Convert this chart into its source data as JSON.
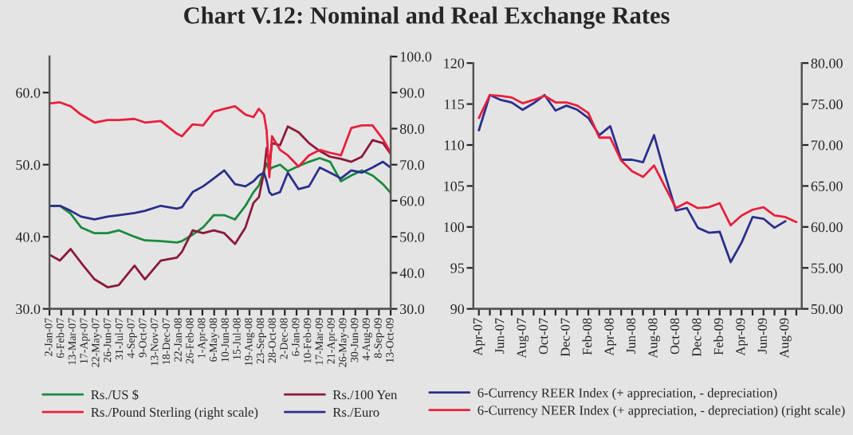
{
  "chart_data": [
    {
      "type": "line",
      "title": "Chart V.12: Nominal and Real Exchange Rates",
      "x": [
        "2007-01-02",
        "2007-02-02",
        "2007-03-06",
        "2007-04-06",
        "2007-05-16",
        "2007-06-24",
        "2007-07-27",
        "2007-09-12",
        "2007-10-13",
        "2007-11-29",
        "2008-01-16",
        "2008-01-31",
        "2008-03-03",
        "2008-04-03",
        "2008-05-05",
        "2008-06-05",
        "2008-07-07",
        "2008-08-07",
        "2008-08-31",
        "2008-09-16",
        "2008-10-01",
        "2008-10-09",
        "2008-10-17",
        "2008-10-25",
        "2008-11-18",
        "2008-12-11",
        "2009-01-12",
        "2009-02-12",
        "2009-03-16",
        "2009-04-16",
        "2009-05-18",
        "2009-06-18",
        "2009-07-19",
        "2009-08-20",
        "2009-09-20",
        "2009-10-13"
      ],
      "series": [
        {
          "name": "Rs./US $",
          "color": "#1a8a3c",
          "values": [
            44.3,
            44.3,
            43.2,
            41.3,
            40.5,
            40.5,
            40.9,
            40.0,
            39.5,
            39.4,
            39.2,
            39.4,
            40.3,
            41.3,
            43.0,
            43.0,
            42.4,
            44.3,
            46.2,
            47.1,
            49.2,
            50.2,
            49.2,
            49.6,
            50.0,
            49.1,
            49.8,
            50.4,
            50.9,
            50.4,
            47.7,
            48.5,
            49.2,
            48.5,
            47.3,
            46.1
          ]
        },
        {
          "name": "Rs./100 Yen",
          "color": "#8b1a3a",
          "values": [
            37.5,
            36.7,
            38.3,
            36.4,
            34.1,
            33.0,
            33.3,
            36.0,
            34.1,
            36.7,
            37.1,
            37.9,
            40.9,
            40.5,
            40.9,
            40.5,
            39.0,
            41.3,
            44.7,
            45.5,
            48.9,
            52.3,
            50.0,
            53.0,
            52.7,
            55.3,
            54.5,
            53.0,
            51.9,
            51.1,
            50.8,
            50.4,
            51.1,
            53.4,
            53.0,
            51.5
          ]
        },
        {
          "name": "Rs./Pound Sterling (right scale)",
          "color": "#e8203c",
          "axis": "y2",
          "values": [
            87.0,
            87.3,
            86.2,
            83.9,
            81.7,
            82.4,
            82.4,
            82.7,
            81.7,
            82.1,
            78.6,
            77.9,
            81.2,
            80.9,
            84.7,
            85.5,
            86.2,
            83.9,
            83.2,
            85.5,
            83.9,
            79.4,
            66.5,
            77.9,
            74.1,
            72.6,
            69.5,
            72.6,
            74.1,
            73.3,
            72.6,
            80.2,
            80.9,
            80.9,
            77.1,
            73.3
          ]
        },
        {
          "name": "Rs./Euro",
          "color": "#2b2f8c",
          "values": [
            44.3,
            44.3,
            43.6,
            42.8,
            42.4,
            42.8,
            43.0,
            43.3,
            43.6,
            44.3,
            43.9,
            44.1,
            46.2,
            47.0,
            48.1,
            49.2,
            47.3,
            47.0,
            47.7,
            48.5,
            48.9,
            47.7,
            46.2,
            45.8,
            46.2,
            48.9,
            46.6,
            47.0,
            49.6,
            48.9,
            48.1,
            49.2,
            48.9,
            49.6,
            50.4,
            49.6
          ]
        }
      ],
      "xlim": [
        "2007-01-02",
        "2009-10-13"
      ],
      "xticks": [
        {
          "value": "2007-01-02",
          "label": "2-Jan-07"
        },
        {
          "value": "2007-02-06",
          "label": "6-Feb-07"
        },
        {
          "value": "2007-03-13",
          "label": "13-Mar-07"
        },
        {
          "value": "2007-04-17",
          "label": "17-Apr-07"
        },
        {
          "value": "2007-05-22",
          "label": "22-May-07"
        },
        {
          "value": "2007-06-26",
          "label": "26-Jun-07"
        },
        {
          "value": "2007-07-31",
          "label": "31-Jul-07"
        },
        {
          "value": "2007-09-04",
          "label": "4-Sep-07"
        },
        {
          "value": "2007-10-09",
          "label": "9-Oct-07"
        },
        {
          "value": "2007-11-13",
          "label": "13-Nov-07"
        },
        {
          "value": "2007-12-18",
          "label": "18-Dec-07"
        },
        {
          "value": "2008-01-22",
          "label": "22-Jan-08"
        },
        {
          "value": "2008-02-26",
          "label": "26-Feb-08"
        },
        {
          "value": "2008-04-01",
          "label": "1-Apr-08"
        },
        {
          "value": "2008-05-06",
          "label": "6-May-08"
        },
        {
          "value": "2008-06-10",
          "label": "10-Jun-08"
        },
        {
          "value": "2008-07-15",
          "label": "15-Jul-08"
        },
        {
          "value": "2008-08-19",
          "label": "19-Aug-08"
        },
        {
          "value": "2008-09-23",
          "label": "23-Sep-08"
        },
        {
          "value": "2008-10-28",
          "label": "28-Oct-08"
        },
        {
          "value": "2008-12-02",
          "label": "2-Dec-08"
        },
        {
          "value": "2009-01-06",
          "label": "6-Jan-09"
        },
        {
          "value": "2009-02-10",
          "label": "10-Feb-09"
        },
        {
          "value": "2009-03-17",
          "label": "17-Mar-09"
        },
        {
          "value": "2009-04-21",
          "label": "21-Apr-09"
        },
        {
          "value": "2009-05-26",
          "label": "26-May-09"
        },
        {
          "value": "2009-06-30",
          "label": "30-Jun-09"
        },
        {
          "value": "2009-08-04",
          "label": "4-Aug-09"
        },
        {
          "value": "2009-09-08",
          "label": "8-Sep-09"
        },
        {
          "value": "2009-10-13",
          "label": "13-Oct-09"
        }
      ],
      "ylim": [
        30,
        65
      ],
      "yticks": [
        {
          "value": 30,
          "label": "30.0"
        },
        {
          "value": 40,
          "label": "40.0"
        },
        {
          "value": 50,
          "label": "50.0"
        },
        {
          "value": 60,
          "label": "60.0"
        }
      ],
      "y2lim": [
        30,
        100
      ],
      "y2ticks": [
        {
          "value": 30,
          "label": "30.0"
        },
        {
          "value": 40,
          "label": "40.0"
        },
        {
          "value": 50,
          "label": "50.0"
        },
        {
          "value": 60,
          "label": "60.0"
        },
        {
          "value": 70,
          "label": "70.0"
        },
        {
          "value": 80,
          "label": "80.0"
        },
        {
          "value": 90,
          "label": "90.0"
        },
        {
          "value": 100,
          "label": "100.0"
        }
      ],
      "legend": "bottom"
    },
    {
      "type": "line",
      "categories": [
        "Apr-07",
        null,
        "Jun-07",
        null,
        "Aug-07",
        null,
        "Oct-07",
        null,
        "Dec-07",
        null,
        "Feb-08",
        null,
        "Apr-08",
        null,
        "Jun-08",
        null,
        "Aug-08",
        null,
        "Oct-08",
        null,
        "Dec-08",
        null,
        "Feb-09",
        null,
        "Apr-09",
        null,
        "Jun-09",
        null,
        "Aug-09",
        null
      ],
      "series": [
        {
          "name": "6-Currency REER Index (+ appreciation, - depreciation)",
          "color": "#2b2f8c",
          "values": [
            111.8,
            116.1,
            115.5,
            115.2,
            114.3,
            115.1,
            116.1,
            114.2,
            114.8,
            114.3,
            113.3,
            111.2,
            112.3,
            108.2,
            108.2,
            107.9,
            111.2,
            106.4,
            102.0,
            102.3,
            99.9,
            99.3,
            99.4,
            95.7,
            98.1,
            101.2,
            101.0,
            99.9,
            100.7,
            null
          ]
        },
        {
          "name": "6-Currency NEER Index (+ appreciation, - depreciation) (right scale)",
          "color": "#e8203c",
          "axis": "y2",
          "values": [
            73.3,
            76.1,
            76.0,
            75.8,
            75.1,
            75.5,
            76.0,
            75.2,
            75.2,
            74.8,
            73.9,
            70.9,
            70.9,
            68.1,
            66.8,
            66.1,
            67.5,
            64.9,
            62.3,
            63.0,
            62.3,
            62.4,
            62.9,
            60.2,
            61.4,
            62.1,
            62.4,
            61.4,
            61.2,
            60.6
          ]
        }
      ],
      "ylim": [
        90,
        120
      ],
      "yticks": [
        90,
        95,
        100,
        105,
        110,
        115,
        120
      ],
      "y2lim": [
        50,
        80
      ],
      "y2ticks": [
        {
          "value": 50,
          "label": "50.00"
        },
        {
          "value": 55,
          "label": "55.00"
        },
        {
          "value": 60,
          "label": "60.00"
        },
        {
          "value": 65,
          "label": "65.00"
        },
        {
          "value": 70,
          "label": "70.00"
        },
        {
          "value": 75,
          "label": "75.00"
        },
        {
          "value": 80,
          "label": "80.00"
        }
      ],
      "legend": "bottom"
    }
  ]
}
